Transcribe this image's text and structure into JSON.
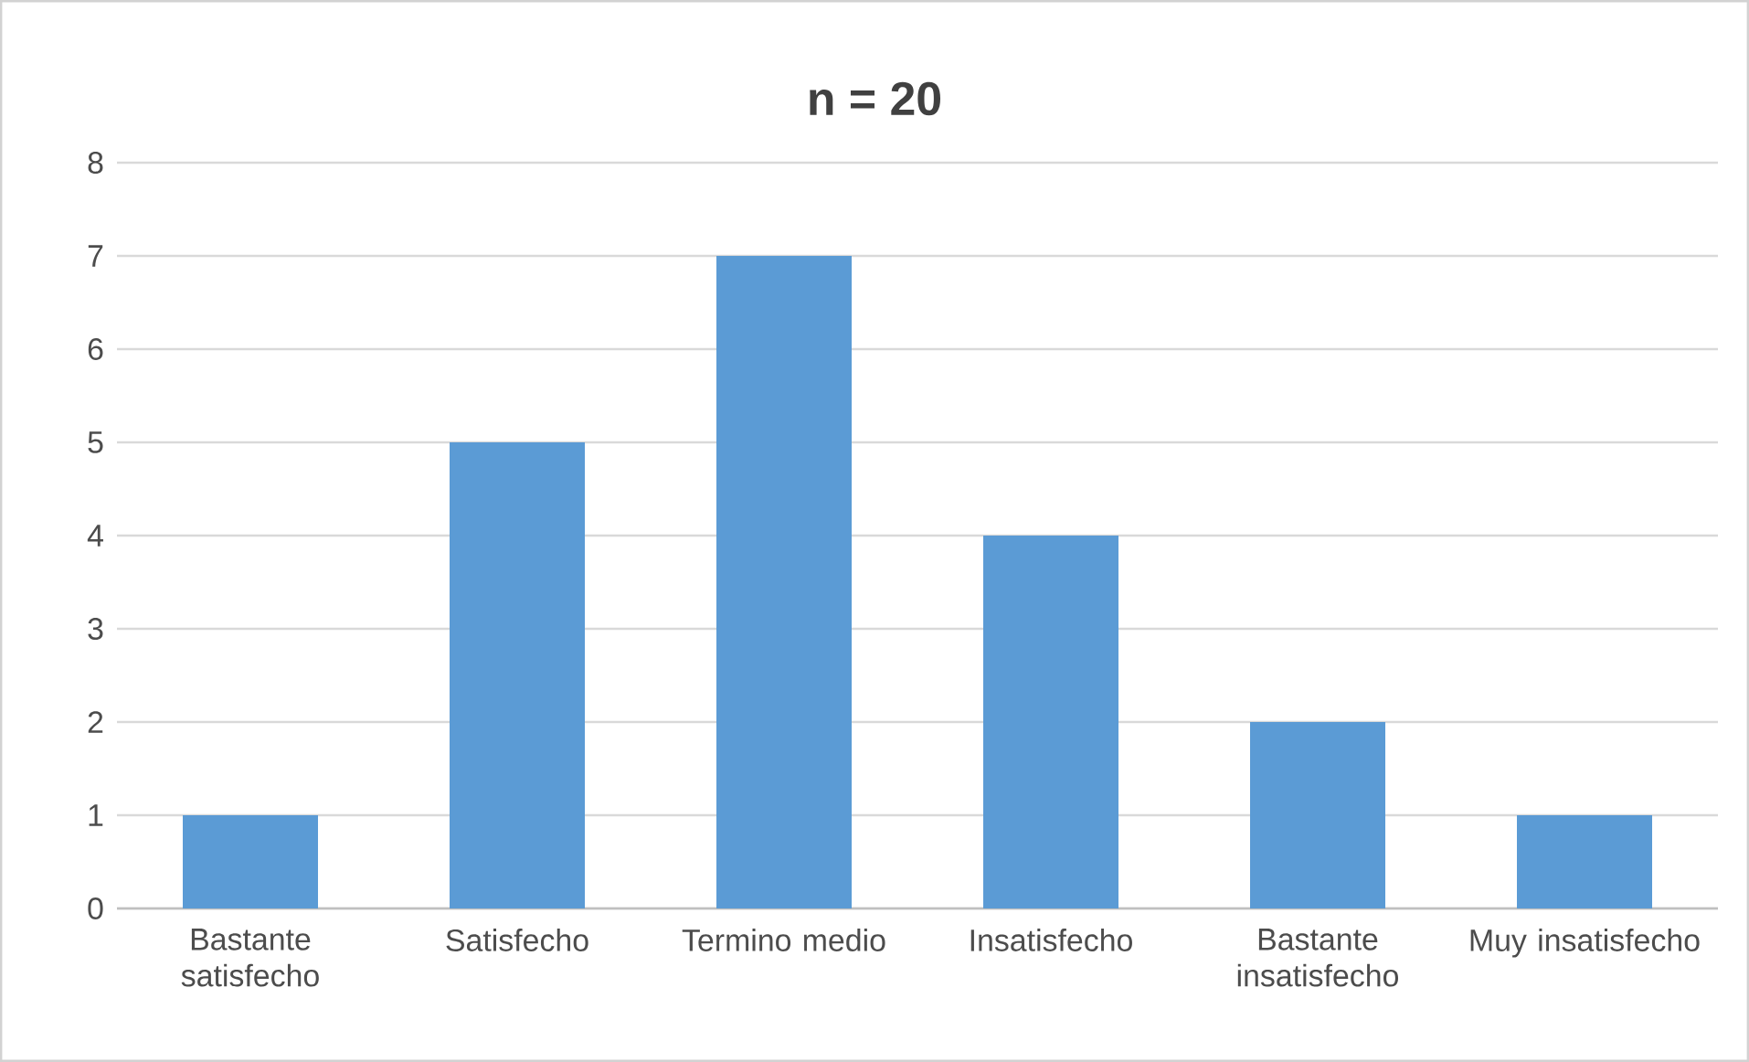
{
  "chart_data": {
    "type": "bar",
    "title": "n = 20",
    "categories": [
      "Bastante satisfecho",
      "Satisfecho",
      "Termino medio",
      "Insatisfecho",
      "Bastante insatisfecho",
      "Muy insatisfecho"
    ],
    "values": [
      1,
      5,
      7,
      4,
      2,
      1
    ],
    "color": "#5b9bd5",
    "ylim": [
      0,
      8
    ],
    "yticks": [
      0,
      1,
      2,
      3,
      4,
      5,
      6,
      7,
      8
    ],
    "grid": "y"
  }
}
